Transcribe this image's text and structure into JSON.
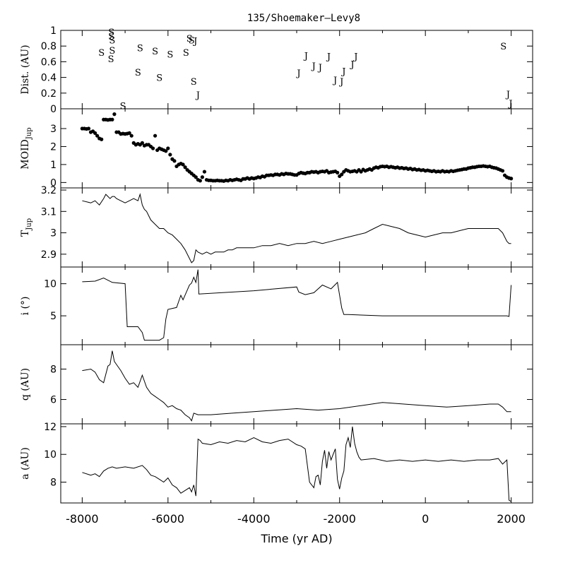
{
  "title": "135/Shoemaker–Levy8",
  "xlabel": "Time (yr AD)",
  "x_ticks": [
    "-8000",
    "-6000",
    "-4000",
    "-2000",
    "0",
    "2000"
  ],
  "chart_data": [
    {
      "type": "scatter",
      "panel": "distance",
      "ylabel": "Dist. (AU)",
      "xlim": [
        -8500,
        2500
      ],
      "ylim": [
        0,
        1
      ],
      "y_ticks": [
        "0",
        "0.2",
        "0.4",
        "0.6",
        "0.8",
        "1"
      ],
      "marker_labels": [
        "S",
        "J"
      ],
      "points": [
        {
          "x": -7550,
          "y": 0.72,
          "label": "S"
        },
        {
          "x": -7320,
          "y": 0.98,
          "label": "S"
        },
        {
          "x": -7320,
          "y": 0.93,
          "label": "S"
        },
        {
          "x": -7300,
          "y": 0.88,
          "label": "S"
        },
        {
          "x": -7300,
          "y": 0.75,
          "label": "S"
        },
        {
          "x": -7330,
          "y": 0.64,
          "label": "S"
        },
        {
          "x": -7050,
          "y": 0.04,
          "label": "S"
        },
        {
          "x": -6650,
          "y": 0.78,
          "label": "S"
        },
        {
          "x": -6700,
          "y": 0.47,
          "label": "S"
        },
        {
          "x": -6300,
          "y": 0.74,
          "label": "S"
        },
        {
          "x": -6200,
          "y": 0.4,
          "label": "S"
        },
        {
          "x": -5950,
          "y": 0.7,
          "label": "S"
        },
        {
          "x": -5580,
          "y": 0.72,
          "label": "S"
        },
        {
          "x": -5500,
          "y": 0.9,
          "label": "S"
        },
        {
          "x": -5450,
          "y": 0.88,
          "label": "S"
        },
        {
          "x": -5360,
          "y": 0.87,
          "label": "J"
        },
        {
          "x": -5400,
          "y": 0.35,
          "label": "S"
        },
        {
          "x": -5300,
          "y": 0.18,
          "label": "J"
        },
        {
          "x": -2950,
          "y": 0.46,
          "label": "J"
        },
        {
          "x": -2780,
          "y": 0.68,
          "label": "J"
        },
        {
          "x": -2600,
          "y": 0.55,
          "label": "J"
        },
        {
          "x": -2450,
          "y": 0.53,
          "label": "J"
        },
        {
          "x": -2250,
          "y": 0.67,
          "label": "J"
        },
        {
          "x": -2100,
          "y": 0.37,
          "label": "J"
        },
        {
          "x": -1950,
          "y": 0.35,
          "label": "J"
        },
        {
          "x": -1900,
          "y": 0.48,
          "label": "J"
        },
        {
          "x": -1700,
          "y": 0.57,
          "label": "J"
        },
        {
          "x": -1620,
          "y": 0.67,
          "label": "J"
        },
        {
          "x": 1820,
          "y": 0.8,
          "label": "S"
        },
        {
          "x": 1930,
          "y": 0.19,
          "label": "J"
        },
        {
          "x": 1990,
          "y": 0.07,
          "label": "J"
        }
      ]
    },
    {
      "type": "scatter",
      "panel": "moid",
      "ylabel": "MOID",
      "ylabel_sub": "Jup",
      "xlim": [
        -8500,
        2500
      ],
      "ylim": [
        -0.3,
        4.1
      ],
      "y_ticks": [
        "0",
        "1",
        "2",
        "3"
      ],
      "x": [
        -8000,
        -7950,
        -7900,
        -7850,
        -7800,
        -7750,
        -7700,
        -7650,
        -7600,
        -7550,
        -7500,
        -7450,
        -7400,
        -7350,
        -7300,
        -7250,
        -7200,
        -7150,
        -7100,
        -7050,
        -7000,
        -6950,
        -6900,
        -6850,
        -6800,
        -6750,
        -6700,
        -6650,
        -6600,
        -6550,
        -6500,
        -6450,
        -6400,
        -6350,
        -6300,
        -6250,
        -6200,
        -6150,
        -6100,
        -6050,
        -6000,
        -5950,
        -5900,
        -5850,
        -5800,
        -5750,
        -5700,
        -5650,
        -5600,
        -5550,
        -5500,
        -5450,
        -5400,
        -5350,
        -5300,
        -5250,
        -5200,
        -5150,
        -5100,
        -5050,
        -5000,
        -4950,
        -4900,
        -4850,
        -4800,
        -4750,
        -4700,
        -4650,
        -4600,
        -4550,
        -4500,
        -4450,
        -4400,
        -4350,
        -4300,
        -4250,
        -4200,
        -4150,
        -4100,
        -4050,
        -4000,
        -3950,
        -3900,
        -3850,
        -3800,
        -3750,
        -3700,
        -3650,
        -3600,
        -3550,
        -3500,
        -3450,
        -3400,
        -3350,
        -3300,
        -3250,
        -3200,
        -3150,
        -3100,
        -3050,
        -3000,
        -2950,
        -2900,
        -2850,
        -2800,
        -2750,
        -2700,
        -2650,
        -2600,
        -2550,
        -2500,
        -2450,
        -2400,
        -2350,
        -2300,
        -2250,
        -2200,
        -2150,
        -2100,
        -2050,
        -2000,
        -1950,
        -1900,
        -1850,
        -1800,
        -1750,
        -1700,
        -1650,
        -1600,
        -1550,
        -1500,
        -1450,
        -1400,
        -1350,
        -1300,
        -1250,
        -1200,
        -1150,
        -1100,
        -1050,
        -1000,
        -950,
        -900,
        -850,
        -800,
        -750,
        -700,
        -650,
        -600,
        -550,
        -500,
        -450,
        -400,
        -350,
        -300,
        -250,
        -200,
        -150,
        -100,
        -50,
        0,
        50,
        100,
        150,
        200,
        250,
        300,
        350,
        400,
        450,
        500,
        550,
        600,
        650,
        700,
        750,
        800,
        850,
        900,
        950,
        1000,
        1050,
        1100,
        1150,
        1200,
        1250,
        1300,
        1350,
        1400,
        1450,
        1500,
        1550,
        1600,
        1650,
        1700,
        1750,
        1800,
        1850,
        1900,
        1950,
        2000
      ],
      "y": [
        3.0,
        3.0,
        2.98,
        3.0,
        2.8,
        2.85,
        2.75,
        2.6,
        2.45,
        2.4,
        3.5,
        3.5,
        3.48,
        3.5,
        3.5,
        3.8,
        2.8,
        2.8,
        2.7,
        2.72,
        2.7,
        2.72,
        2.75,
        2.6,
        2.2,
        2.1,
        2.15,
        2.1,
        2.2,
        2.05,
        2.1,
        2.1,
        2.0,
        1.9,
        2.6,
        1.8,
        1.9,
        1.85,
        1.8,
        1.75,
        1.9,
        1.55,
        1.3,
        1.2,
        0.9,
        1.0,
        1.05,
        1.0,
        0.85,
        0.7,
        0.6,
        0.5,
        0.4,
        0.3,
        0.15,
        0.1,
        0.3,
        0.6,
        0.15,
        0.12,
        0.12,
        0.1,
        0.1,
        0.12,
        0.1,
        0.1,
        0.08,
        0.12,
        0.1,
        0.15,
        0.12,
        0.15,
        0.18,
        0.15,
        0.12,
        0.2,
        0.2,
        0.25,
        0.2,
        0.25,
        0.22,
        0.25,
        0.3,
        0.28,
        0.35,
        0.32,
        0.4,
        0.4,
        0.42,
        0.4,
        0.45,
        0.45,
        0.42,
        0.48,
        0.45,
        0.5,
        0.48,
        0.48,
        0.45,
        0.42,
        0.42,
        0.5,
        0.55,
        0.52,
        0.5,
        0.55,
        0.55,
        0.6,
        0.58,
        0.6,
        0.55,
        0.6,
        0.62,
        0.6,
        0.65,
        0.55,
        0.58,
        0.6,
        0.62,
        0.55,
        0.35,
        0.45,
        0.6,
        0.7,
        0.65,
        0.6,
        0.62,
        0.65,
        0.6,
        0.7,
        0.6,
        0.72,
        0.65,
        0.7,
        0.75,
        0.7,
        0.8,
        0.85,
        0.82,
        0.88,
        0.9,
        0.88,
        0.9,
        0.85,
        0.88,
        0.85,
        0.82,
        0.85,
        0.8,
        0.82,
        0.78,
        0.8,
        0.75,
        0.78,
        0.72,
        0.75,
        0.7,
        0.72,
        0.68,
        0.7,
        0.65,
        0.68,
        0.65,
        0.62,
        0.65,
        0.6,
        0.62,
        0.6,
        0.65,
        0.6,
        0.62,
        0.6,
        0.65,
        0.62,
        0.65,
        0.68,
        0.7,
        0.72,
        0.75,
        0.75,
        0.8,
        0.82,
        0.85,
        0.85,
        0.88,
        0.9,
        0.9,
        0.92,
        0.9,
        0.88,
        0.9,
        0.85,
        0.82,
        0.8,
        0.75,
        0.7,
        0.65,
        0.4,
        0.3,
        0.25,
        0.22
      ]
    },
    {
      "type": "line",
      "panel": "tisserand",
      "ylabel": "T",
      "ylabel_sub": "Jup",
      "xlim": [
        -8500,
        2500
      ],
      "ylim": [
        2.84,
        3.21
      ],
      "y_ticks": [
        "2.9",
        "3",
        "3.1",
        "3.2"
      ],
      "x": [
        -8000,
        -7800,
        -7700,
        -7600,
        -7500,
        -7450,
        -7400,
        -7350,
        -7300,
        -7250,
        -7200,
        -7100,
        -7000,
        -6900,
        -6800,
        -6700,
        -6650,
        -6600,
        -6550,
        -6500,
        -6450,
        -6400,
        -6300,
        -6200,
        -6100,
        -6000,
        -5900,
        -5800,
        -5700,
        -5600,
        -5500,
        -5450,
        -5400,
        -5350,
        -5300,
        -5200,
        -5100,
        -5000,
        -4900,
        -4800,
        -4700,
        -4600,
        -4500,
        -4400,
        -4200,
        -4000,
        -3800,
        -3600,
        -3400,
        -3200,
        -3000,
        -2800,
        -2600,
        -2400,
        -2200,
        -2000,
        -1800,
        -1600,
        -1400,
        -1200,
        -1000,
        -800,
        -600,
        -400,
        -200,
        0,
        200,
        400,
        600,
        800,
        1000,
        1200,
        1400,
        1600,
        1700,
        1800,
        1900,
        1950,
        2000
      ],
      "y": [
        3.15,
        3.14,
        3.15,
        3.13,
        3.16,
        3.18,
        3.17,
        3.16,
        3.17,
        3.17,
        3.16,
        3.15,
        3.14,
        3.15,
        3.16,
        3.15,
        3.18,
        3.13,
        3.11,
        3.1,
        3.08,
        3.06,
        3.04,
        3.02,
        3.02,
        3.0,
        2.99,
        2.97,
        2.95,
        2.92,
        2.88,
        2.86,
        2.87,
        2.92,
        2.91,
        2.9,
        2.91,
        2.9,
        2.91,
        2.91,
        2.91,
        2.92,
        2.92,
        2.93,
        2.93,
        2.93,
        2.94,
        2.94,
        2.95,
        2.94,
        2.95,
        2.95,
        2.96,
        2.95,
        2.96,
        2.97,
        2.98,
        2.99,
        3.0,
        3.02,
        3.04,
        3.03,
        3.02,
        3.0,
        2.99,
        2.98,
        2.99,
        3.0,
        3.0,
        3.01,
        3.02,
        3.02,
        3.02,
        3.02,
        3.02,
        3.0,
        2.96,
        2.95,
        2.95
      ]
    },
    {
      "type": "line",
      "panel": "inclination",
      "ylabel": "i (°)",
      "xlim": [
        -8500,
        2500
      ],
      "ylim": [
        0.5,
        12.6
      ],
      "y_ticks": [
        "5",
        "10"
      ],
      "x": [
        -8000,
        -7700,
        -7500,
        -7300,
        -7000,
        -6950,
        -6700,
        -6600,
        -6550,
        -6200,
        -6100,
        -6050,
        -6000,
        -5800,
        -5700,
        -5650,
        -5500,
        -5450,
        -5400,
        -5350,
        -5300,
        -5280,
        -4000,
        -3000,
        -2950,
        -2800,
        -2600,
        -2400,
        -2200,
        -2050,
        -1950,
        -1900,
        -1800,
        -1000,
        0,
        1000,
        1900,
        1950,
        2000
      ],
      "y": [
        10.3,
        10.4,
        10.9,
        10.2,
        10.0,
        3.3,
        3.3,
        2.4,
        1.2,
        1.2,
        1.6,
        4.5,
        6.0,
        6.3,
        8.2,
        7.5,
        9.8,
        10.1,
        11.0,
        10.2,
        12.2,
        8.4,
        8.9,
        9.5,
        8.7,
        8.3,
        8.6,
        9.8,
        9.2,
        10.2,
        6.2,
        5.2,
        5.2,
        5.0,
        5.0,
        5.0,
        5.0,
        4.9,
        9.8
      ]
    },
    {
      "type": "line",
      "panel": "perihelion",
      "ylabel": "q (AU)",
      "xlim": [
        -8500,
        2500
      ],
      "ylim": [
        4.4,
        9.6
      ],
      "y_ticks": [
        "6",
        "8"
      ],
      "x": [
        -8000,
        -7800,
        -7700,
        -7600,
        -7500,
        -7400,
        -7350,
        -7300,
        -7250,
        -7200,
        -7100,
        -7000,
        -6900,
        -6800,
        -6700,
        -6600,
        -6500,
        -6400,
        -6300,
        -6200,
        -6100,
        -6000,
        -5900,
        -5800,
        -5700,
        -5600,
        -5500,
        -5450,
        -5400,
        -5300,
        -5000,
        -4500,
        -4000,
        -3500,
        -3000,
        -2500,
        -2000,
        -1500,
        -1000,
        -500,
        0,
        500,
        1000,
        1500,
        1700,
        1800,
        1900,
        2000
      ],
      "y": [
        7.9,
        8.0,
        7.8,
        7.3,
        7.1,
        8.2,
        8.3,
        9.2,
        8.5,
        8.3,
        7.9,
        7.4,
        7.0,
        7.1,
        6.8,
        7.6,
        6.8,
        6.4,
        6.2,
        6.0,
        5.8,
        5.5,
        5.6,
        5.4,
        5.3,
        5.0,
        4.8,
        4.6,
        5.1,
        5.0,
        5.0,
        5.1,
        5.2,
        5.3,
        5.4,
        5.3,
        5.4,
        5.6,
        5.8,
        5.7,
        5.6,
        5.5,
        5.6,
        5.7,
        5.7,
        5.5,
        5.2,
        5.2
      ]
    },
    {
      "type": "line",
      "panel": "semimajor",
      "ylabel": "a (AU)",
      "xlim": [
        -8500,
        2500
      ],
      "ylim": [
        6.5,
        12.2
      ],
      "y_ticks": [
        "8",
        "10",
        "12"
      ],
      "x": [
        -8000,
        -7800,
        -7700,
        -7600,
        -7500,
        -7400,
        -7300,
        -7200,
        -7000,
        -6800,
        -6600,
        -6500,
        -6400,
        -6300,
        -6200,
        -6100,
        -6000,
        -5900,
        -5800,
        -5700,
        -5600,
        -5500,
        -5450,
        -5400,
        -5350,
        -5300,
        -5250,
        -5200,
        -5000,
        -4800,
        -4600,
        -4400,
        -4200,
        -4000,
        -3800,
        -3600,
        -3400,
        -3200,
        -3000,
        -2900,
        -2800,
        -2700,
        -2600,
        -2550,
        -2500,
        -2450,
        -2400,
        -2350,
        -2300,
        -2250,
        -2200,
        -2150,
        -2100,
        -2050,
        -2000,
        -1950,
        -1900,
        -1850,
        -1800,
        -1750,
        -1700,
        -1650,
        -1600,
        -1550,
        -1500,
        -1200,
        -900,
        -600,
        -300,
        0,
        300,
        600,
        900,
        1200,
        1500,
        1700,
        1800,
        1900,
        1950,
        2000
      ],
      "y": [
        8.7,
        8.5,
        8.6,
        8.4,
        8.8,
        9.0,
        9.1,
        9.0,
        9.1,
        9.0,
        9.2,
        8.9,
        8.5,
        8.4,
        8.2,
        8.0,
        8.3,
        7.8,
        7.6,
        7.2,
        7.4,
        7.6,
        7.3,
        7.8,
        7.0,
        11.1,
        11.0,
        10.8,
        10.7,
        10.9,
        10.8,
        11.0,
        10.9,
        11.2,
        10.9,
        10.8,
        11.0,
        11.1,
        10.7,
        10.6,
        10.4,
        8.0,
        7.6,
        8.4,
        8.5,
        7.8,
        9.5,
        10.3,
        9.0,
        10.2,
        9.6,
        10.0,
        10.4,
        8.2,
        7.5,
        8.3,
        8.8,
        10.7,
        11.2,
        10.5,
        12.0,
        10.8,
        10.2,
        9.8,
        9.6,
        9.7,
        9.5,
        9.6,
        9.5,
        9.6,
        9.5,
        9.6,
        9.5,
        9.6,
        9.6,
        9.7,
        9.3,
        9.6,
        6.7,
        6.6
      ]
    }
  ]
}
